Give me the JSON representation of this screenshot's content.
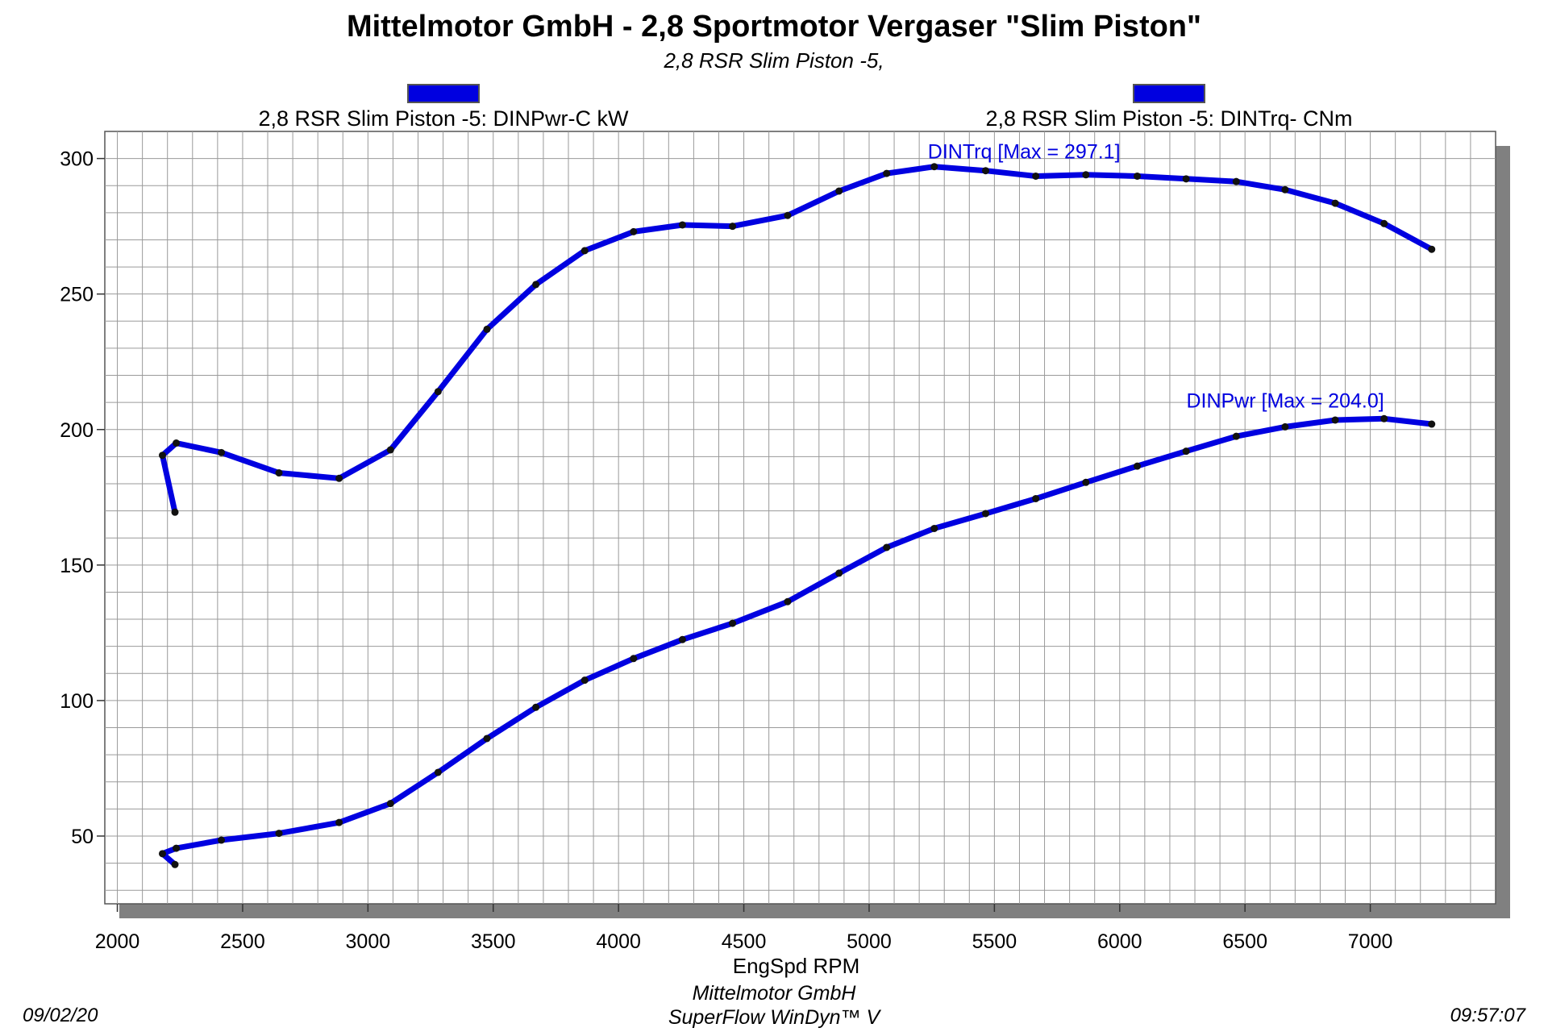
{
  "header": {
    "title": "Mittelmotor GmbH - 2,8 Sportmotor Vergaser \"Slim Piston\"",
    "subtitle": "2,8 RSR Slim Piston -5,"
  },
  "legend": [
    {
      "label": "2,8 RSR Slim Piston -5: DINPwr-C kW",
      "color": "#0000e0"
    },
    {
      "label": "2,8 RSR Slim Piston -5: DINTrq- CNm",
      "color": "#0000e0"
    }
  ],
  "footer": {
    "date": "09/02/20",
    "time": "09:57:07",
    "company": "Mittelmotor GmbH",
    "software": "SuperFlow WinDyn™ V"
  },
  "chart_data": {
    "type": "line",
    "xlabel": "EngSpd  RPM",
    "ylabel": "",
    "xlim": [
      1950,
      7500
    ],
    "ylim": [
      25,
      310
    ],
    "x_ticks": [
      2000,
      2500,
      3000,
      3500,
      4000,
      4500,
      5000,
      5500,
      6000,
      6500,
      7000
    ],
    "y_ticks": [
      50,
      100,
      150,
      200,
      250,
      300
    ],
    "grid": true,
    "series_color": "#0000e0",
    "marker_color": "#111111",
    "series": [
      {
        "name": "2,8 RSR Slim Piston -5: DINPwr-C kW",
        "annotation": "DINPwr [Max = 204.0]",
        "x": [
          2230,
          2180,
          2235,
          2415,
          2645,
          2885,
          3090,
          3280,
          3475,
          3670,
          3865,
          4060,
          4255,
          4455,
          4675,
          4880,
          5070,
          5260,
          5465,
          5665,
          5865,
          6070,
          6265,
          6465,
          6660,
          6860,
          7055,
          7245
        ],
        "values": [
          39.5,
          43.5,
          45.5,
          48.5,
          51,
          55,
          62,
          73.5,
          86,
          97.5,
          107.5,
          115.5,
          122.5,
          128.5,
          136.5,
          147,
          156.5,
          163.5,
          169,
          174.5,
          180.5,
          186.5,
          192,
          197.5,
          201,
          203.5,
          204,
          202
        ]
      },
      {
        "name": "2,8 RSR Slim Piston -5: DINTrq- CNm",
        "annotation": "DINTrq [Max = 297.1]",
        "x": [
          2230,
          2180,
          2235,
          2415,
          2645,
          2885,
          3090,
          3280,
          3475,
          3670,
          3865,
          4060,
          4255,
          4455,
          4675,
          4880,
          5070,
          5260,
          5465,
          5665,
          5865,
          6070,
          6265,
          6465,
          6660,
          6860,
          7055,
          7245
        ],
        "values": [
          169.5,
          190.5,
          195,
          191.5,
          184,
          182,
          192.5,
          214,
          237,
          253.5,
          266,
          273,
          275.5,
          275,
          279,
          288,
          294.5,
          297,
          295.5,
          293.5,
          294,
          293.5,
          292.5,
          291.5,
          288.5,
          283.5,
          276,
          266.5
        ]
      }
    ]
  }
}
